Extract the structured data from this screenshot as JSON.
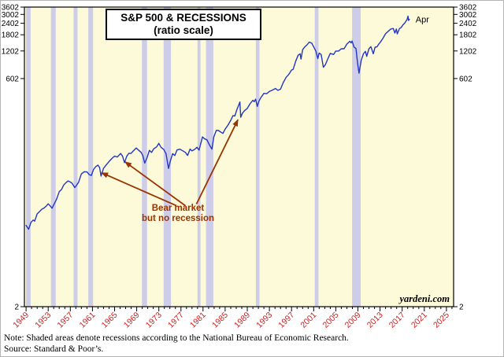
{
  "header": {
    "title_line1": "S&P 500 & RECESSIONS",
    "title_line2": "(ratio scale)"
  },
  "watermark": "yardeni.com",
  "notes": {
    "line1": "Note: Shaded areas denote recessions according to the National Bureau of Economic Research.",
    "line2": "Source: Standard & Poor’s."
  },
  "chart_data": {
    "type": "line",
    "title": "S&P 500 & RECESSIONS (ratio scale)",
    "y_scale": "log",
    "x_range": [
      1948.7,
      2026.3
    ],
    "y_range": [
      2,
      3602
    ],
    "y_ticks": [
      2,
      602,
      1202,
      1802,
      2402,
      3002,
      3602
    ],
    "x_ticks": [
      1949,
      1953,
      1957,
      1961,
      1965,
      1969,
      1973,
      1977,
      1981,
      1985,
      1989,
      1993,
      1997,
      2001,
      2005,
      2009,
      2013,
      2017,
      2021,
      2025
    ],
    "x_label_color": "#cc2222",
    "plot_bg": "#fcfad8",
    "recession_color": "#cdcdea",
    "last_point_label": "Apr",
    "recessions": [
      [
        1949.0,
        1949.83
      ],
      [
        1953.5,
        1954.37
      ],
      [
        1957.6,
        1958.3
      ],
      [
        1960.25,
        1961.12
      ],
      [
        1969.95,
        1970.87
      ],
      [
        1973.87,
        1975.2
      ],
      [
        1980.0,
        1980.54
      ],
      [
        1981.54,
        1982.87
      ],
      [
        1990.54,
        1991.2
      ],
      [
        2001.2,
        2001.87
      ],
      [
        2007.95,
        2009.5
      ]
    ],
    "annotation": {
      "text_line1": "Bear market",
      "text_line2": "but no recession",
      "color": "#993300",
      "arrows": [
        {
          "from": [
            1976.2,
            25
          ],
          "to": [
            1962.65,
            57
          ]
        },
        {
          "from": [
            1977.8,
            25
          ],
          "to": [
            1966.9,
            75
          ]
        },
        {
          "from": [
            1979.8,
            26
          ],
          "to": [
            1987.3,
            215
          ]
        }
      ]
    },
    "series": [
      {
        "name": "S&P 500",
        "color": "#2335c4",
        "points": [
          [
            1949.0,
            15.3
          ],
          [
            1949.45,
            13.9
          ],
          [
            1949.9,
            16.5
          ],
          [
            1950.3,
            17.5
          ],
          [
            1950.55,
            17.0
          ],
          [
            1951.0,
            20.4
          ],
          [
            1951.4,
            21.5
          ],
          [
            1951.8,
            22.8
          ],
          [
            1952.2,
            23.5
          ],
          [
            1952.6,
            24.6
          ],
          [
            1953.0,
            26.2
          ],
          [
            1953.4,
            24.7
          ],
          [
            1953.7,
            23.5
          ],
          [
            1954.0,
            25.5
          ],
          [
            1954.5,
            29.2
          ],
          [
            1955.0,
            35.5
          ],
          [
            1955.4,
            37.5
          ],
          [
            1955.8,
            42.0
          ],
          [
            1956.2,
            44.5
          ],
          [
            1956.6,
            46.5
          ],
          [
            1957.0,
            45.2
          ],
          [
            1957.3,
            44.0
          ],
          [
            1957.8,
            39.4
          ],
          [
            1958.1,
            41.5
          ],
          [
            1958.5,
            45.0
          ],
          [
            1959.0,
            55.4
          ],
          [
            1959.5,
            58.5
          ],
          [
            1960.0,
            58.3
          ],
          [
            1960.4,
            54.5
          ],
          [
            1960.8,
            53.3
          ],
          [
            1961.2,
            62.0
          ],
          [
            1961.6,
            66.5
          ],
          [
            1962.0,
            69.0
          ],
          [
            1962.3,
            65.0
          ],
          [
            1962.55,
            52.5
          ],
          [
            1963.0,
            63.5
          ],
          [
            1963.5,
            69.5
          ],
          [
            1964.0,
            75.5
          ],
          [
            1964.5,
            81.5
          ],
          [
            1965.0,
            86.5
          ],
          [
            1965.5,
            84.5
          ],
          [
            1966.1,
            92.5
          ],
          [
            1966.45,
            86.0
          ],
          [
            1966.8,
            73.5
          ],
          [
            1967.2,
            86.0
          ],
          [
            1967.6,
            93.0
          ],
          [
            1968.0,
            92.5
          ],
          [
            1968.3,
            97.5
          ],
          [
            1968.9,
            106.0
          ],
          [
            1969.3,
            101.0
          ],
          [
            1969.8,
            95.0
          ],
          [
            1970.1,
            88.0
          ],
          [
            1970.45,
            72.5
          ],
          [
            1970.9,
            84.0
          ],
          [
            1971.3,
            100.0
          ],
          [
            1971.7,
            95.0
          ],
          [
            1972.1,
            104.0
          ],
          [
            1972.6,
            109.0
          ],
          [
            1973.0,
            119.0
          ],
          [
            1973.4,
            108.0
          ],
          [
            1973.9,
            102.0
          ],
          [
            1974.3,
            92.0
          ],
          [
            1974.75,
            63.5
          ],
          [
            1975.1,
            77.0
          ],
          [
            1975.5,
            92.0
          ],
          [
            1975.9,
            88.0
          ],
          [
            1976.3,
            101.0
          ],
          [
            1976.8,
            103.0
          ],
          [
            1977.3,
            99.0
          ],
          [
            1977.8,
            95.0
          ],
          [
            1978.2,
            88.0
          ],
          [
            1978.65,
            103.0
          ],
          [
            1979.0,
            98.5
          ],
          [
            1979.5,
            102.5
          ],
          [
            1979.9,
            108.0
          ],
          [
            1980.27,
            100.5
          ],
          [
            1980.7,
            125.0
          ],
          [
            1980.9,
            140.0
          ],
          [
            1981.3,
            133.0
          ],
          [
            1981.7,
            130.0
          ],
          [
            1982.1,
            116.0
          ],
          [
            1982.6,
            103.0
          ],
          [
            1982.95,
            140.0
          ],
          [
            1983.4,
            165.0
          ],
          [
            1983.8,
            164.0
          ],
          [
            1984.25,
            157.0
          ],
          [
            1984.6,
            153.0
          ],
          [
            1985.0,
            170.0
          ],
          [
            1985.5,
            188.0
          ],
          [
            1986.0,
            212.0
          ],
          [
            1986.4,
            238.0
          ],
          [
            1986.75,
            236.0
          ],
          [
            1987.1,
            275.0
          ],
          [
            1987.65,
            335.0
          ],
          [
            1987.82,
            229.0
          ],
          [
            1988.1,
            252.0
          ],
          [
            1988.5,
            270.0
          ],
          [
            1989.0,
            285.0
          ],
          [
            1989.5,
            320.0
          ],
          [
            1990.0,
            350.0
          ],
          [
            1990.25,
            338.0
          ],
          [
            1990.5,
            360.0
          ],
          [
            1990.8,
            300.0
          ],
          [
            1991.1,
            342.0
          ],
          [
            1991.5,
            378.0
          ],
          [
            1992.0,
            416.0
          ],
          [
            1992.5,
            412.0
          ],
          [
            1993.0,
            436.0
          ],
          [
            1993.5,
            450.0
          ],
          [
            1994.1,
            470.0
          ],
          [
            1994.5,
            448.0
          ],
          [
            1995.0,
            462.0
          ],
          [
            1995.5,
            545.0
          ],
          [
            1996.0,
            618.0
          ],
          [
            1996.5,
            668.0
          ],
          [
            1997.0,
            745.0
          ],
          [
            1997.3,
            760.0
          ],
          [
            1997.75,
            930.0
          ],
          [
            1998.2,
            1080.0
          ],
          [
            1998.55,
            1120.0
          ],
          [
            1998.7,
            980.0
          ],
          [
            1999.0,
            1240.0
          ],
          [
            1999.4,
            1330.0
          ],
          [
            1999.8,
            1400.0
          ],
          [
            2000.2,
            1500.0
          ],
          [
            2000.65,
            1460.0
          ],
          [
            2001.0,
            1330.0
          ],
          [
            2001.4,
            1200.0
          ],
          [
            2001.75,
            990.0
          ],
          [
            2002.0,
            1140.0
          ],
          [
            2002.35,
            1100.0
          ],
          [
            2002.75,
            800.0
          ],
          [
            2003.1,
            850.0
          ],
          [
            2003.6,
            1000.0
          ],
          [
            2004.0,
            1130.0
          ],
          [
            2004.6,
            1100.0
          ],
          [
            2005.0,
            1200.0
          ],
          [
            2005.5,
            1200.0
          ],
          [
            2006.0,
            1270.0
          ],
          [
            2006.5,
            1270.0
          ],
          [
            2007.0,
            1430.0
          ],
          [
            2007.55,
            1530.0
          ],
          [
            2007.78,
            1470.0
          ],
          [
            2007.95,
            1540.0
          ],
          [
            2008.3,
            1320.0
          ],
          [
            2008.65,
            1280.0
          ],
          [
            2008.95,
            880.0
          ],
          [
            2009.2,
            690.0
          ],
          [
            2009.6,
            950.0
          ],
          [
            2010.0,
            1120.0
          ],
          [
            2010.35,
            1190.0
          ],
          [
            2010.6,
            1050.0
          ],
          [
            2011.0,
            1270.0
          ],
          [
            2011.35,
            1340.0
          ],
          [
            2011.78,
            1120.0
          ],
          [
            2012.1,
            1320.0
          ],
          [
            2012.45,
            1330.0
          ],
          [
            2012.75,
            1420.0
          ],
          [
            2013.0,
            1480.0
          ],
          [
            2013.5,
            1640.0
          ],
          [
            2014.0,
            1850.0
          ],
          [
            2014.5,
            1970.0
          ],
          [
            2014.95,
            2080.0
          ],
          [
            2015.4,
            2110.0
          ],
          [
            2015.68,
            1880.0
          ],
          [
            2015.95,
            2080.0
          ],
          [
            2016.12,
            1840.0
          ],
          [
            2016.5,
            2100.0
          ],
          [
            2016.85,
            2170.0
          ],
          [
            2017.1,
            2290.0
          ],
          [
            2017.5,
            2430.0
          ],
          [
            2017.9,
            2650.0
          ],
          [
            2018.05,
            2870.0
          ],
          [
            2018.16,
            2580.0
          ],
          [
            2018.3,
            2650.0
          ]
        ]
      }
    ]
  }
}
